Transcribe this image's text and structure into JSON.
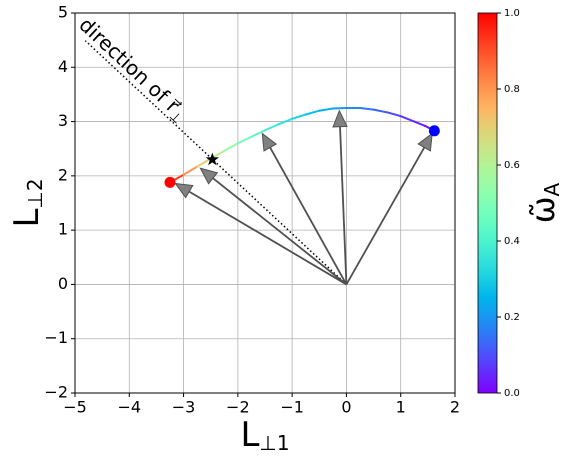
{
  "chart_data": {
    "type": "vector",
    "xlabel": {
      "text": "L",
      "subscript": "⊥1"
    },
    "ylabel": {
      "text": "L",
      "subscript": "⊥2"
    },
    "xlim": [
      -5,
      2
    ],
    "ylim": [
      -2,
      5
    ],
    "xticks": [
      {
        "value": -5,
        "label": "−5"
      },
      {
        "value": -4,
        "label": "−4"
      },
      {
        "value": -3,
        "label": "−3"
      },
      {
        "value": -2,
        "label": "−2"
      },
      {
        "value": -1,
        "label": "−1"
      },
      0,
      1,
      2
    ],
    "yticks": [
      {
        "value": -2,
        "label": "−2"
      },
      {
        "value": -1,
        "label": "−1"
      },
      0,
      1,
      2,
      3,
      4,
      5
    ],
    "grid": true,
    "curve": {
      "x": [
        -3.25,
        -3.0,
        -2.75,
        -2.5,
        -2.25,
        -2.0,
        -1.75,
        -1.5,
        -1.25,
        -1.0,
        -0.75,
        -0.5,
        -0.25,
        0,
        0.25,
        0.5,
        0.75,
        1.0,
        1.25,
        1.45,
        1.62
      ],
      "y": [
        1.88,
        2.02,
        2.17,
        2.32,
        2.46,
        2.6,
        2.72,
        2.84,
        2.95,
        3.05,
        3.13,
        3.2,
        3.24,
        3.25,
        3.25,
        3.22,
        3.17,
        3.1,
        3.0,
        2.92,
        2.83
      ],
      "omega": [
        1.0,
        0.85,
        0.75,
        0.65,
        0.58,
        0.5,
        0.45,
        0.4,
        0.36,
        0.32,
        0.29,
        0.26,
        0.23,
        0.2,
        0.17,
        0.14,
        0.11,
        0.08,
        0.05,
        0.03,
        0.0
      ]
    },
    "arrows": {
      "x": [
        -3.15,
        -2.69,
        -1.55,
        -0.13,
        1.58
      ],
      "y": [
        1.86,
        2.14,
        2.78,
        3.2,
        2.78
      ],
      "color": "#808080"
    },
    "star": {
      "x": -2.47,
      "y": 2.3,
      "color": "#000000"
    },
    "start_point": {
      "x": -3.25,
      "y": 1.88,
      "color": "#ff0000"
    },
    "end_point": {
      "x": 1.62,
      "y": 2.83,
      "color": "#0000ff"
    },
    "direction_line": {
      "x": [
        0,
        -4.81
      ],
      "y": [
        0,
        4.49
      ]
    },
    "annotation": {
      "text": "direction of r⃗",
      "subscript": "⊥"
    },
    "colorbar": {
      "label": {
        "text": "ω̃",
        "subscript": "A"
      },
      "colormap": "rainbow",
      "lim": [
        0,
        1
      ],
      "ticks": [
        {
          "value": 0,
          "label": "0.0"
        },
        {
          "value": 0.2,
          "label": "0.2"
        },
        {
          "value": 0.4,
          "label": "0.4"
        },
        {
          "value": 0.6,
          "label": "0.6"
        },
        {
          "value": 0.8,
          "label": "0.8"
        },
        {
          "value": 1,
          "label": "1.0"
        }
      ]
    }
  }
}
